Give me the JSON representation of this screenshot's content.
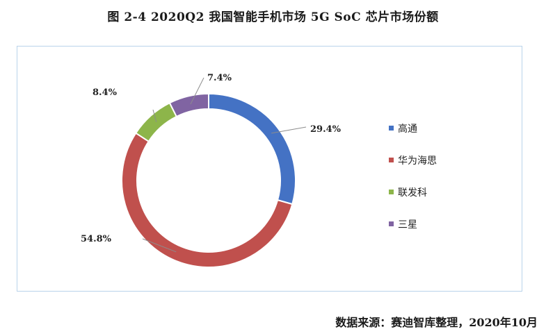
{
  "chart_data": {
    "type": "pie",
    "style": "donut",
    "title": "图 2-4 2020Q2 我国智能手机市场 5G SoC 芯片市场份额",
    "categories": [
      "高通",
      "华为海思",
      "联发科",
      "三星"
    ],
    "values": [
      29.4,
      54.8,
      8.4,
      7.4
    ],
    "value_labels": [
      "29.4%",
      "54.8%",
      "8.4%",
      "7.4%"
    ],
    "colors": [
      "#4472c4",
      "#c0504d",
      "#8db54a",
      "#8064a2"
    ],
    "legend_position": "right",
    "start_angle": "12 o'clock, clockwise"
  },
  "source": "数据来源：赛迪智库整理，2020年10月"
}
